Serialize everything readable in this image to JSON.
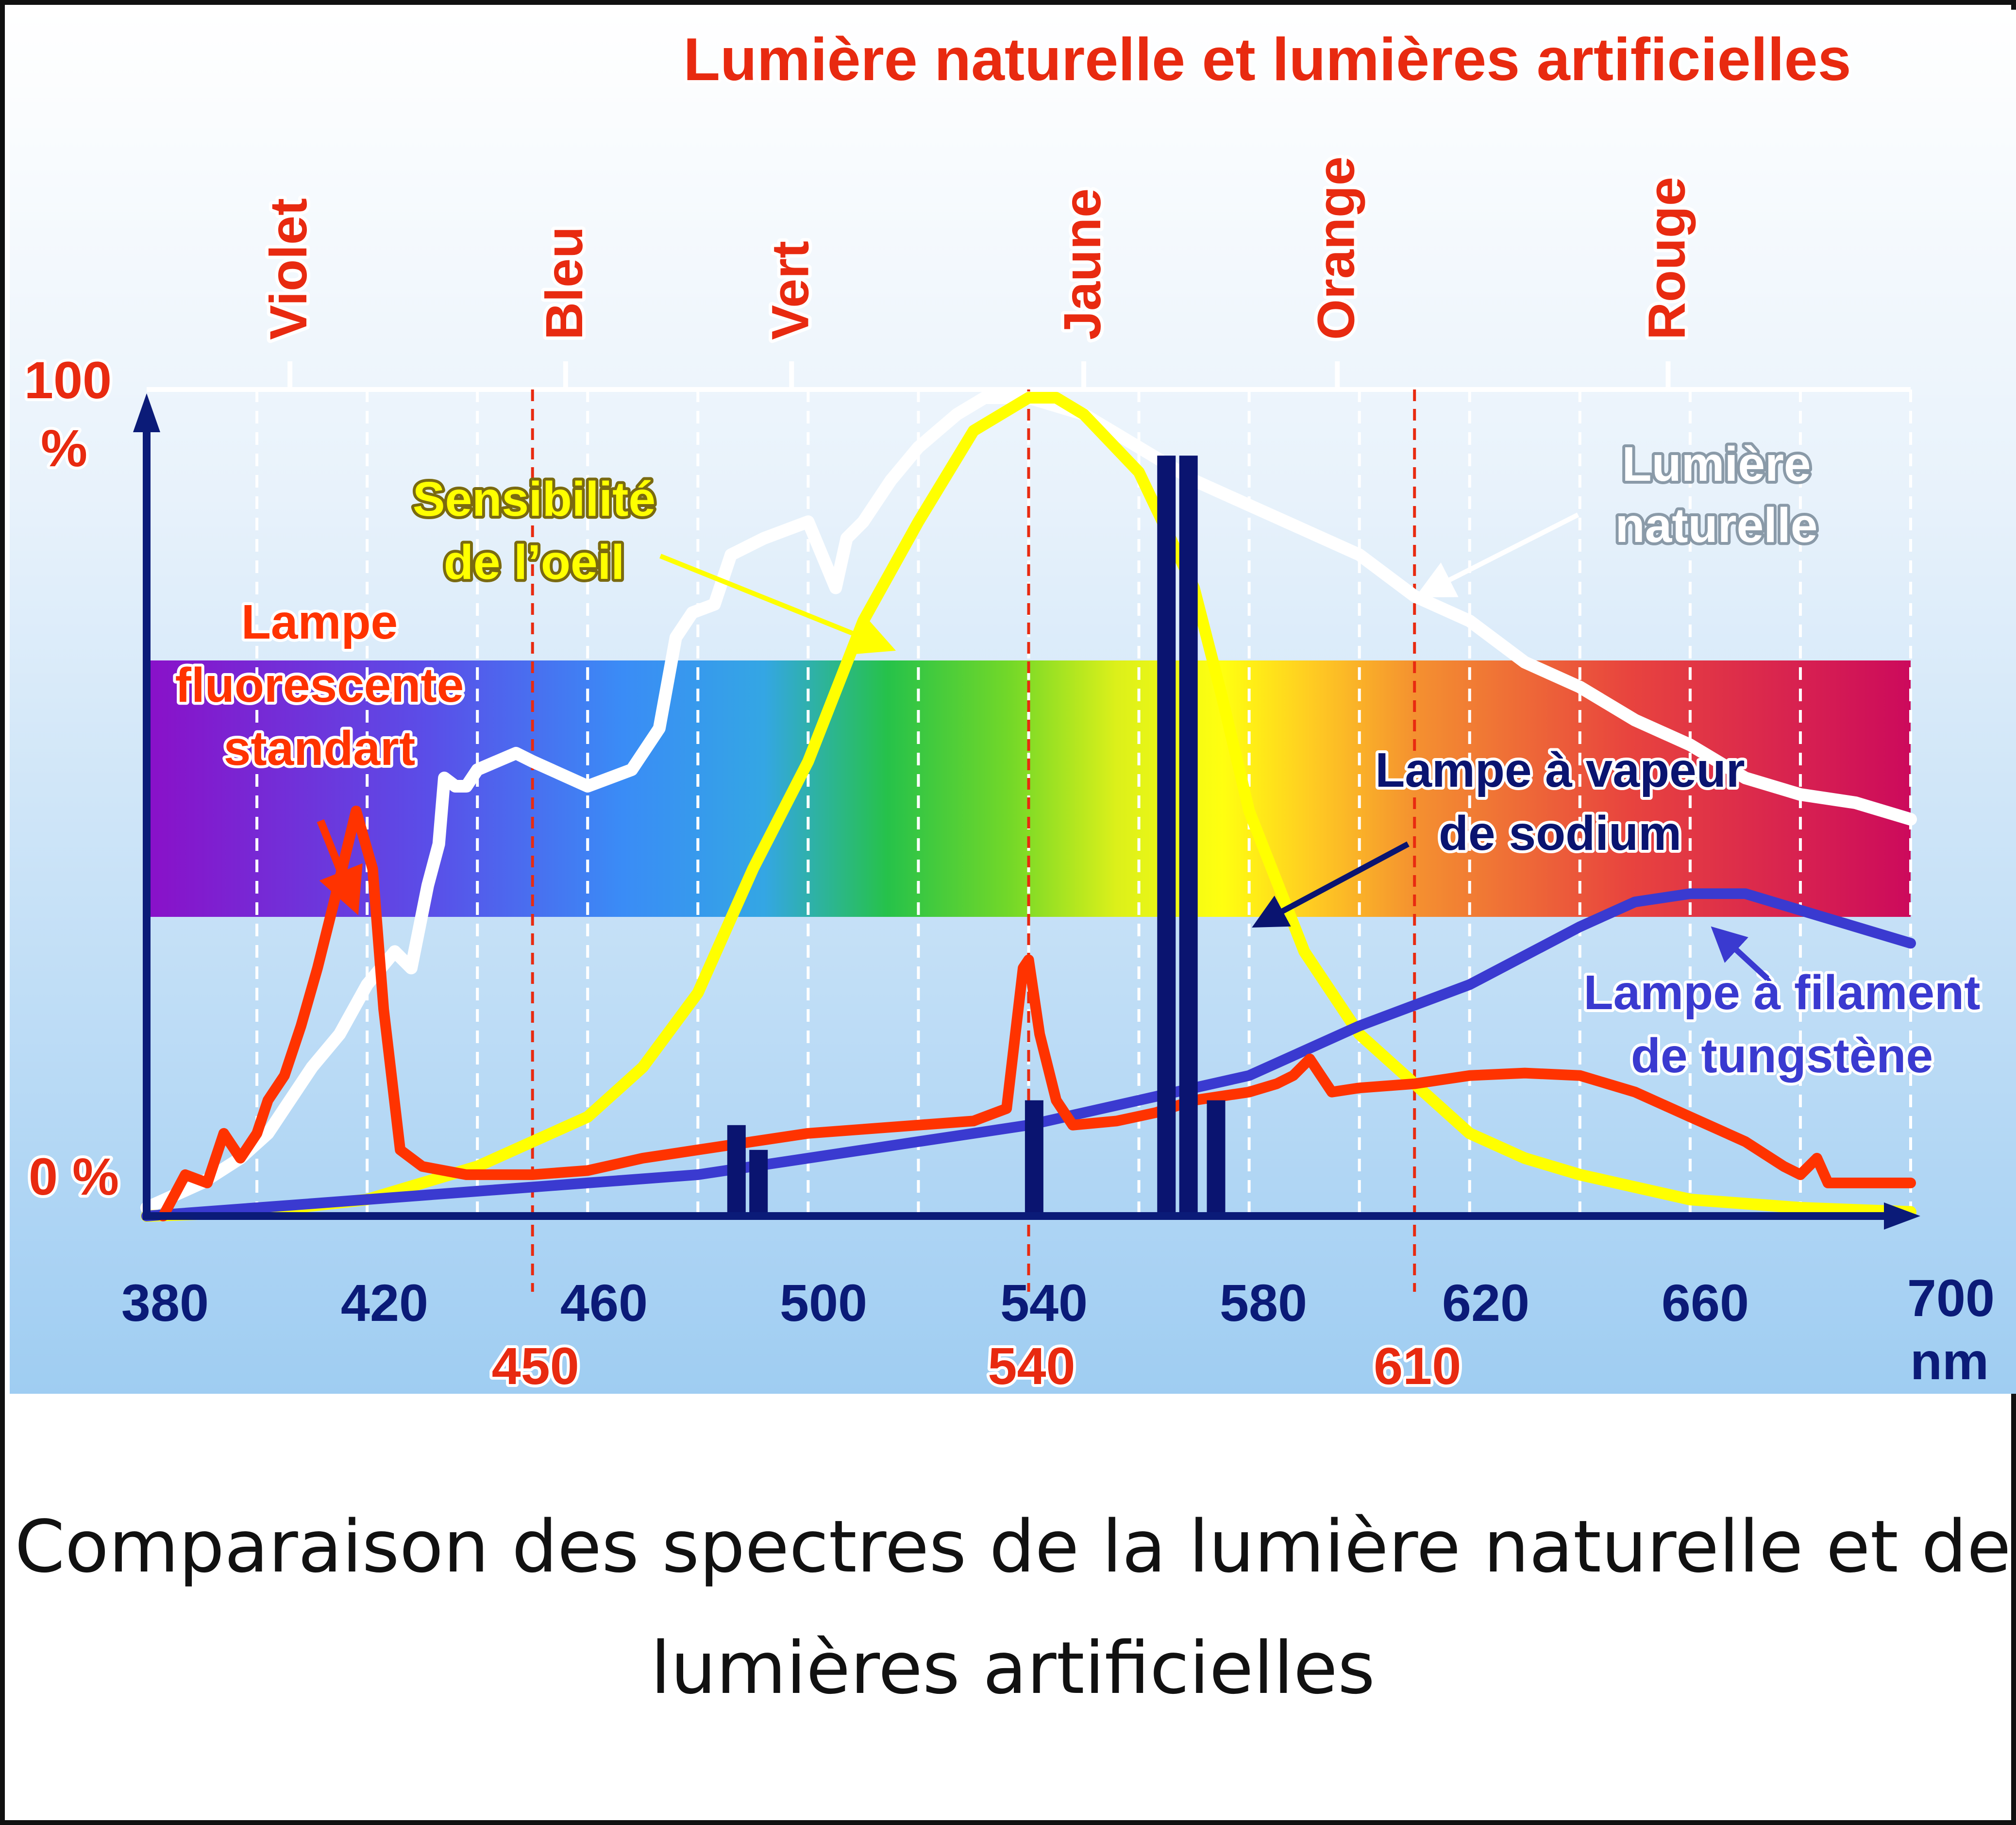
{
  "caption": {
    "line1": "Comparaison des spectres de la lumière naturelle et de",
    "line2": "lumières artificielles"
  },
  "chart_data": {
    "type": "line",
    "title": "Lumière naturelle et lumières artificielles",
    "xlim": [
      380,
      700
    ],
    "ylim": [
      0,
      100
    ],
    "x_ticks": [
      "380",
      "420",
      "460",
      "500",
      "540",
      "580",
      "620",
      "660",
      "700"
    ],
    "x_unit": "nm",
    "y_tick_top": "100",
    "y_tick_top_unit": "%",
    "y_tick_bottom": "0 %",
    "boundary_ticks": [
      450,
      540,
      610
    ],
    "boundary_tick_labels": [
      "450",
      "540",
      "610"
    ],
    "color_names": [
      {
        "label": "Violet",
        "x": 406
      },
      {
        "label": "Bleu",
        "x": 456
      },
      {
        "label": "Vert",
        "x": 497
      },
      {
        "label": "Jaune",
        "x": 550
      },
      {
        "label": "Orange",
        "x": 596
      },
      {
        "label": "Rouge",
        "x": 656
      }
    ],
    "colors": {
      "title": "#e82a10",
      "axis": "#0b1b78",
      "daylight": "#ffffff",
      "eye": "#ffff00",
      "fluorescent": "#ff3300",
      "tungsten": "#3a3ad0",
      "sodium": "#0a1470",
      "boundary": "#e82a10"
    },
    "series": [
      {
        "name": "Lumière naturelle",
        "label_lines": [
          "Lumière",
          "naturelle"
        ],
        "points": [
          [
            380,
            1
          ],
          [
            390,
            4
          ],
          [
            397,
            7
          ],
          [
            402,
            10
          ],
          [
            405,
            13
          ],
          [
            410,
            18
          ],
          [
            415,
            22
          ],
          [
            420,
            28
          ],
          [
            425,
            32
          ],
          [
            428,
            30
          ],
          [
            431,
            40
          ],
          [
            433,
            45
          ],
          [
            434,
            53
          ],
          [
            436,
            52
          ],
          [
            438,
            52
          ],
          [
            440,
            54
          ],
          [
            447,
            56
          ],
          [
            450,
            55
          ],
          [
            460,
            52
          ],
          [
            468,
            54
          ],
          [
            473,
            59
          ],
          [
            476,
            70
          ],
          [
            479,
            73
          ],
          [
            483,
            74
          ],
          [
            486,
            80
          ],
          [
            489,
            81
          ],
          [
            492,
            82
          ],
          [
            496,
            83
          ],
          [
            500,
            84
          ],
          [
            505,
            76
          ],
          [
            507,
            82
          ],
          [
            510,
            84
          ],
          [
            515,
            89
          ],
          [
            520,
            93
          ],
          [
            527,
            97
          ],
          [
            532,
            99
          ],
          [
            540,
            99
          ],
          [
            550,
            97
          ],
          [
            560,
            93
          ],
          [
            570,
            89
          ],
          [
            580,
            86
          ],
          [
            590,
            83
          ],
          [
            600,
            80
          ],
          [
            610,
            75
          ],
          [
            620,
            72
          ],
          [
            630,
            67
          ],
          [
            640,
            64
          ],
          [
            650,
            60
          ],
          [
            660,
            57
          ],
          [
            670,
            53
          ],
          [
            680,
            51
          ],
          [
            690,
            50
          ],
          [
            700,
            48
          ]
        ]
      },
      {
        "name": "Sensibilité de l'oeil",
        "label_lines": [
          "Sensibilité",
          "de l’oeil"
        ],
        "points": [
          [
            380,
            0
          ],
          [
            400,
            0.5
          ],
          [
            420,
            2
          ],
          [
            440,
            6
          ],
          [
            460,
            12
          ],
          [
            470,
            18
          ],
          [
            480,
            27
          ],
          [
            490,
            42
          ],
          [
            500,
            55
          ],
          [
            510,
            72
          ],
          [
            520,
            84
          ],
          [
            530,
            95
          ],
          [
            540,
            99
          ],
          [
            545,
            99
          ],
          [
            550,
            97
          ],
          [
            560,
            90
          ],
          [
            570,
            76
          ],
          [
            575,
            63
          ],
          [
            580,
            49
          ],
          [
            590,
            32
          ],
          [
            600,
            22
          ],
          [
            610,
            16
          ],
          [
            620,
            10
          ],
          [
            630,
            7
          ],
          [
            640,
            5
          ],
          [
            660,
            2
          ],
          [
            680,
            1
          ],
          [
            700,
            0.5
          ]
        ]
      },
      {
        "name": "Lampe fluorescente standart",
        "label_lines": [
          "Lampe",
          "fluorescente",
          "standart"
        ],
        "points": [
          [
            383,
            0
          ],
          [
            387,
            5
          ],
          [
            391,
            4
          ],
          [
            394,
            10
          ],
          [
            397,
            7
          ],
          [
            400,
            10
          ],
          [
            402,
            14
          ],
          [
            405,
            17
          ],
          [
            408,
            23
          ],
          [
            411,
            30
          ],
          [
            414,
            38
          ],
          [
            418,
            49
          ],
          [
            421,
            42
          ],
          [
            423,
            25
          ],
          [
            426,
            8
          ],
          [
            430,
            6
          ],
          [
            438,
            5
          ],
          [
            450,
            5
          ],
          [
            460,
            5.5
          ],
          [
            470,
            7
          ],
          [
            480,
            8
          ],
          [
            490,
            9
          ],
          [
            500,
            10
          ],
          [
            510,
            10.5
          ],
          [
            520,
            11
          ],
          [
            530,
            11.5
          ],
          [
            536,
            13
          ],
          [
            539,
            30
          ],
          [
            540,
            31
          ],
          [
            542,
            22
          ],
          [
            545,
            14
          ],
          [
            548,
            11
          ],
          [
            556,
            11.5
          ],
          [
            563,
            12.5
          ],
          [
            570,
            14
          ],
          [
            580,
            15
          ],
          [
            585,
            16
          ],
          [
            588,
            17
          ],
          [
            591,
            19
          ],
          [
            593,
            17
          ],
          [
            595,
            15
          ],
          [
            600,
            15.5
          ],
          [
            610,
            16
          ],
          [
            620,
            17
          ],
          [
            630,
            17.3
          ],
          [
            640,
            17
          ],
          [
            650,
            15
          ],
          [
            660,
            12
          ],
          [
            670,
            9
          ],
          [
            677,
            6
          ],
          [
            680,
            5
          ],
          [
            683,
            7
          ],
          [
            685,
            4
          ],
          [
            690,
            4
          ],
          [
            700,
            4
          ]
        ]
      },
      {
        "name": "Lampe à filament de tungstène",
        "label_lines": [
          "Lampe à filament",
          "de tungstène"
        ],
        "points": [
          [
            380,
            0
          ],
          [
            400,
            1
          ],
          [
            420,
            2
          ],
          [
            440,
            3
          ],
          [
            460,
            4
          ],
          [
            480,
            5
          ],
          [
            500,
            7
          ],
          [
            520,
            9
          ],
          [
            540,
            11
          ],
          [
            560,
            14
          ],
          [
            580,
            17
          ],
          [
            600,
            23
          ],
          [
            620,
            28
          ],
          [
            640,
            35
          ],
          [
            650,
            38
          ],
          [
            660,
            39
          ],
          [
            670,
            39
          ],
          [
            680,
            37
          ],
          [
            690,
            35
          ],
          [
            700,
            33
          ]
        ]
      }
    ],
    "sodium_lines": {
      "name": "Lampe à vapeur de sodium",
      "label_lines": [
        "Lampe à vapeur",
        "de sodium"
      ],
      "bars": [
        {
          "x": 487,
          "value": 11
        },
        {
          "x": 491,
          "value": 8
        },
        {
          "x": 541,
          "value": 14
        },
        {
          "x": 565,
          "value": 92
        },
        {
          "x": 569,
          "value": 92
        },
        {
          "x": 574,
          "value": 14
        }
      ]
    }
  }
}
